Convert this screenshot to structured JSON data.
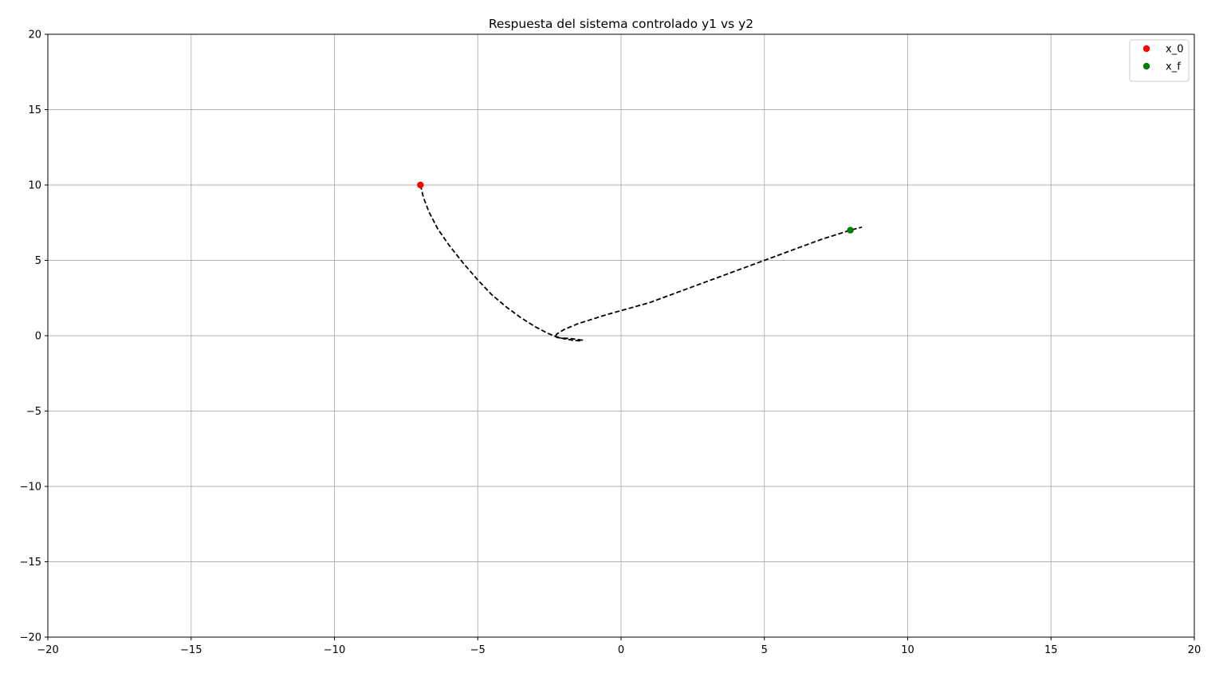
{
  "chart_data": {
    "type": "scatter",
    "title": "Respuesta del sistema controlado y1 vs y2",
    "xlabel": "",
    "ylabel": "",
    "xlim": [
      -20,
      20
    ],
    "ylim": [
      -20,
      20
    ],
    "xticks": [
      -20,
      -15,
      -10,
      -5,
      0,
      5,
      10,
      15,
      20
    ],
    "yticks": [
      -20,
      -15,
      -10,
      -5,
      0,
      5,
      10,
      15,
      20
    ],
    "xtick_labels": [
      "−20",
      "−15",
      "−10",
      "−5",
      "0",
      "5",
      "10",
      "15",
      "20"
    ],
    "ytick_labels": [
      "−20",
      "−15",
      "−10",
      "−5",
      "0",
      "5",
      "10",
      "15",
      "20"
    ],
    "grid": true,
    "legend_position": "top-right",
    "series": [
      {
        "type": "line",
        "style": "dashed",
        "color": "#000000",
        "points": [
          [
            -7.0,
            10.0
          ],
          [
            -6.9,
            9.2
          ],
          [
            -6.7,
            8.2
          ],
          [
            -6.4,
            7.1
          ],
          [
            -6.0,
            6.0
          ],
          [
            -5.5,
            4.8
          ],
          [
            -5.0,
            3.7
          ],
          [
            -4.5,
            2.7
          ],
          [
            -4.0,
            1.9
          ],
          [
            -3.5,
            1.2
          ],
          [
            -3.0,
            0.6
          ],
          [
            -2.6,
            0.2
          ],
          [
            -2.3,
            -0.05
          ],
          [
            -2.0,
            -0.2
          ],
          [
            -1.7,
            -0.3
          ],
          [
            -1.4,
            -0.35
          ],
          [
            -1.35,
            -0.3
          ],
          [
            -1.7,
            -0.2
          ],
          [
            -2.1,
            -0.15
          ],
          [
            -2.3,
            -0.1
          ],
          [
            -2.25,
            0.1
          ],
          [
            -2.0,
            0.4
          ],
          [
            -1.5,
            0.8
          ],
          [
            -0.5,
            1.4
          ],
          [
            1.0,
            2.2
          ],
          [
            3.0,
            3.6
          ],
          [
            5.0,
            5.0
          ],
          [
            7.0,
            6.4
          ],
          [
            8.0,
            7.0
          ],
          [
            8.4,
            7.2
          ]
        ]
      },
      {
        "name": "x_0",
        "type": "point",
        "color": "#ff0000",
        "x": -7.0,
        "y": 10.0
      },
      {
        "name": "x_f",
        "type": "point",
        "color": "#008000",
        "x": 8.0,
        "y": 7.0
      }
    ]
  }
}
